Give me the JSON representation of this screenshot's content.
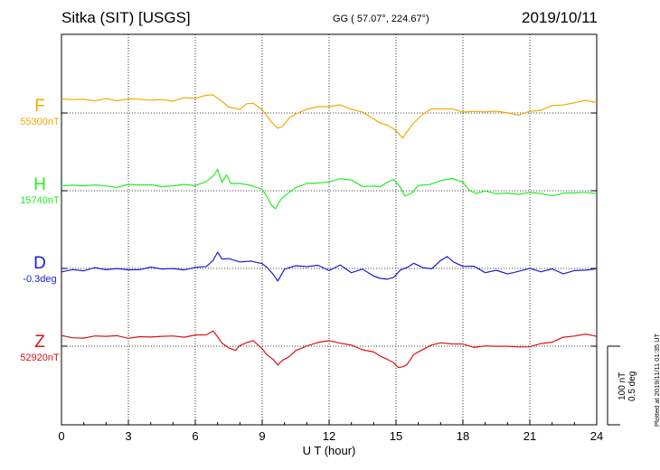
{
  "header": {
    "station": "Sitka (SIT)  [USGS]",
    "coords": "GG ( 57.07°, 224.67°)",
    "date": "2019/10/11"
  },
  "footer": {
    "plotted": "Plotted at 2019/11/11 01:35 UT",
    "scale_nt": "100 nT",
    "scale_deg": "0.5 deg"
  },
  "chart_data": {
    "type": "line",
    "title": "Sitka (SIT)  [USGS]",
    "xlabel": "U T (hour)",
    "xlim": [
      0,
      24
    ],
    "xticks": [
      0,
      3,
      6,
      9,
      12,
      15,
      18,
      21,
      24
    ],
    "grid": "dotted, every 3 hours",
    "scale": {
      "nT_per_division": 100,
      "deg_per_division": 0.5
    },
    "series": [
      {
        "name": "F",
        "baseline": "55300nT",
        "color": "#f5a800",
        "x": [
          0,
          0.5,
          1,
          1.5,
          2,
          2.5,
          3,
          3.5,
          4,
          4.5,
          5,
          5.5,
          6,
          6.5,
          6.8,
          7,
          7.2,
          7.5,
          7.8,
          8,
          8.3,
          8.6,
          9,
          9.2,
          9.5,
          9.7,
          9.9,
          10.2,
          10.5,
          11,
          11.5,
          12,
          12.5,
          13,
          13.5,
          14,
          14.3,
          14.6,
          14.9,
          15.1,
          15.3,
          15.5,
          15.8,
          16.2,
          16.6,
          17,
          17.5,
          18,
          18.5,
          19,
          19.5,
          20,
          20.5,
          21,
          21.5,
          22,
          22.5,
          23,
          23.5,
          24
        ],
        "values": [
          18,
          17,
          16,
          17,
          18,
          17,
          17,
          17,
          17,
          17,
          17,
          18,
          19,
          22,
          24,
          20,
          14,
          8,
          4,
          6,
          12,
          13,
          4,
          -5,
          -13,
          -20,
          -16,
          -8,
          -2,
          5,
          8,
          10,
          9,
          5,
          0,
          -7,
          -12,
          -16,
          -20,
          -28,
          -31,
          -24,
          -12,
          -2,
          4,
          6,
          5,
          3,
          1,
          1,
          2,
          0,
          -1,
          1,
          4,
          8,
          11,
          14,
          16,
          14
        ]
      },
      {
        "name": "H",
        "baseline": "15740nT",
        "color": "#22ee22",
        "x": [
          0,
          0.5,
          1,
          1.5,
          2,
          2.5,
          3,
          3.5,
          4,
          4.5,
          5,
          5.5,
          6,
          6.5,
          6.8,
          7,
          7.2,
          7.4,
          7.6,
          8,
          8.5,
          9,
          9.2,
          9.4,
          9.6,
          9.8,
          10,
          10.5,
          11,
          11.5,
          12,
          12.5,
          13,
          13.5,
          14,
          14.3,
          14.6,
          14.9,
          15.2,
          15.4,
          15.7,
          16,
          16.5,
          17,
          17.5,
          18,
          18.3,
          18.6,
          19,
          19.5,
          20,
          20.5,
          21,
          21.5,
          22,
          22.5,
          23,
          23.5,
          24
        ],
        "values": [
          8,
          6,
          6,
          7,
          6,
          6,
          7,
          8,
          6,
          6,
          7,
          8,
          7,
          10,
          20,
          27,
          12,
          20,
          8,
          10,
          6,
          4,
          -8,
          -18,
          -24,
          -13,
          -5,
          3,
          10,
          8,
          12,
          16,
          14,
          6,
          4,
          6,
          10,
          16,
          4,
          -8,
          -3,
          6,
          10,
          12,
          16,
          10,
          0,
          -2,
          -1,
          -3,
          -5,
          -4,
          -2,
          -3,
          -6,
          -5,
          -2,
          -3,
          -2
        ]
      },
      {
        "name": "D",
        "baseline": "-0.3deg",
        "color": "#1c1cd0",
        "x": [
          0,
          0.5,
          1,
          1.5,
          2,
          2.5,
          3,
          3.5,
          4,
          4.5,
          5,
          5.5,
          6,
          6.5,
          6.8,
          7,
          7.2,
          7.5,
          8,
          8.5,
          9,
          9.2,
          9.5,
          9.7,
          10,
          10.5,
          11,
          11.5,
          12,
          12.5,
          13,
          13.5,
          14,
          14.3,
          14.6,
          14.9,
          15.2,
          15.5,
          15.8,
          16.2,
          16.6,
          17,
          17.3,
          17.6,
          18,
          18.5,
          19,
          19.5,
          20,
          20.5,
          21,
          21.5,
          22,
          22.5,
          23,
          23.5,
          24
        ],
        "values": [
          -3,
          -2,
          -2,
          -1,
          -1,
          0,
          -1,
          -1,
          0,
          0,
          -1,
          0,
          1,
          2,
          10,
          20,
          14,
          12,
          9,
          8,
          6,
          3,
          -8,
          -15,
          -3,
          4,
          2,
          5,
          -2,
          3,
          -5,
          -2,
          -8,
          -13,
          -14,
          -12,
          -3,
          3,
          6,
          2,
          -2,
          10,
          16,
          8,
          4,
          1,
          -5,
          -3,
          -6,
          -3,
          -1,
          -4,
          -2,
          -5,
          -3,
          -2,
          -1
        ]
      },
      {
        "name": "Z",
        "baseline": "52920nT",
        "color": "#dd1111",
        "x": [
          0,
          0.5,
          1,
          1.5,
          2,
          2.5,
          3,
          3.5,
          4,
          4.5,
          5,
          5.5,
          6,
          6.5,
          6.8,
          7,
          7.2,
          7.5,
          7.8,
          8,
          8.3,
          8.6,
          9,
          9.2,
          9.5,
          9.7,
          9.9,
          10.2,
          10.5,
          11,
          11.5,
          12,
          12.5,
          13,
          13.5,
          14,
          14.3,
          14.6,
          14.9,
          15.1,
          15.3,
          15.5,
          15.8,
          16.2,
          16.6,
          17,
          17.5,
          18,
          18.5,
          19,
          19.5,
          20,
          20.5,
          21,
          21.5,
          22,
          22.5,
          23,
          23.5,
          24
        ],
        "values": [
          13,
          12,
          11,
          12,
          13,
          12,
          12,
          12,
          12,
          12,
          12,
          13,
          14,
          16,
          18,
          12,
          4,
          -2,
          -4,
          -1,
          5,
          6,
          -2,
          -10,
          -18,
          -24,
          -20,
          -12,
          -6,
          1,
          4,
          6,
          5,
          1,
          -3,
          -9,
          -13,
          -17,
          -21,
          -26,
          -28,
          -23,
          -12,
          -3,
          2,
          4,
          3,
          1,
          0,
          0,
          1,
          -1,
          -2,
          0,
          3,
          7,
          10,
          13,
          15,
          13
        ]
      }
    ]
  }
}
